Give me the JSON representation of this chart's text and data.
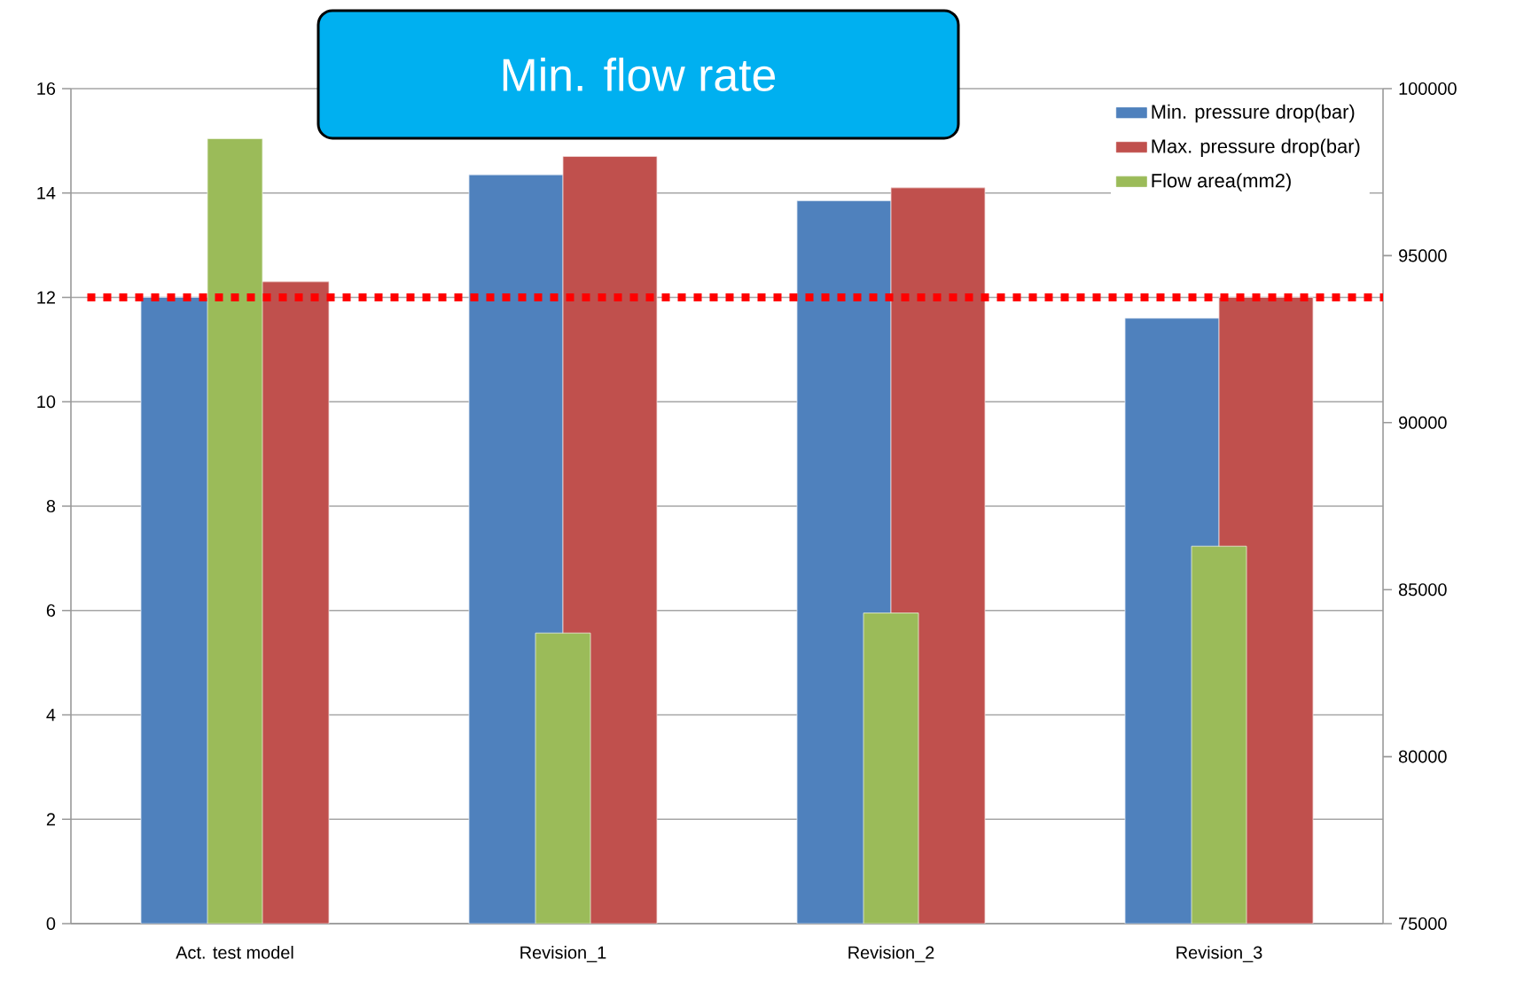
{
  "chart_data": {
    "type": "bar",
    "title": "Min. flow rate",
    "categories": [
      "Act. test model",
      "Revision_1",
      "Revision_2",
      "Revision_3"
    ],
    "series": [
      {
        "name": "Min. pressure drop(bar)",
        "color": "#4f81bd",
        "values": [
          12.0,
          14.35,
          13.85,
          11.6
        ]
      },
      {
        "name": "Max. pressure drop(bar)",
        "color": "#c0504d",
        "values": [
          12.3,
          14.7,
          14.1,
          12.0
        ]
      },
      {
        "name": "Flow area(mm2)",
        "color": "#9bbb59",
        "values": [
          98500,
          83700,
          84300,
          86300
        ],
        "axis": "y2"
      }
    ],
    "ylim": [
      0,
      16
    ],
    "yticks": [
      0,
      2,
      4,
      6,
      8,
      10,
      12,
      14,
      16
    ],
    "y2lim": [
      75000,
      100000
    ],
    "y2ticks": [
      75000,
      80000,
      85000,
      90000,
      95000,
      100000
    ],
    "grid": "y",
    "legend": "top right",
    "ref_lines": [
      {
        "axis": "y",
        "value": 12,
        "color": "#ff0000",
        "line_style": "dotted"
      }
    ]
  }
}
